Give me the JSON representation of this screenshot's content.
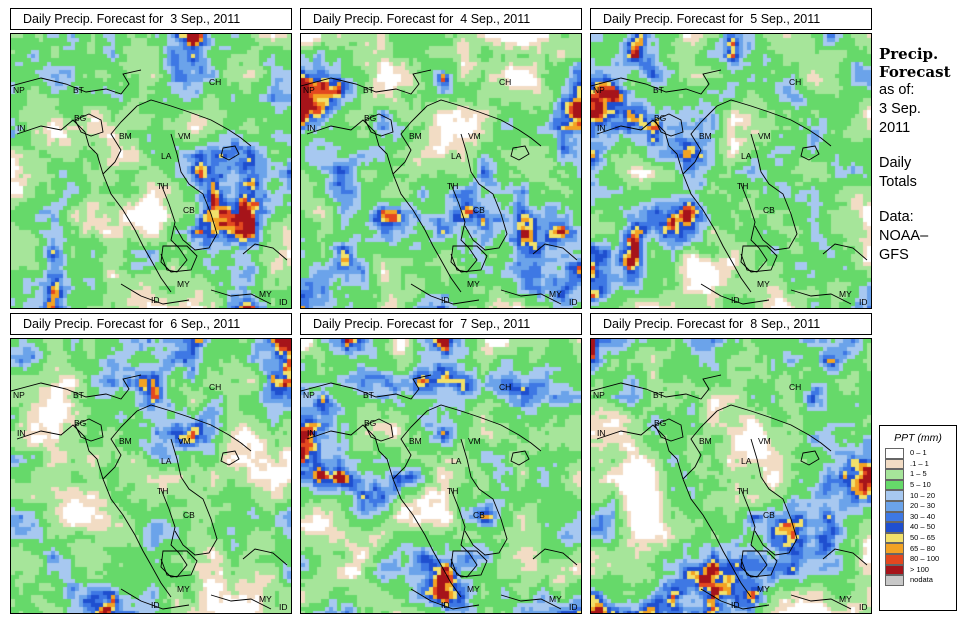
{
  "panels": [
    {
      "title": "Daily Precip. Forecast for  3 Sep., 2011",
      "seed": 11
    },
    {
      "title": "Daily Precip. Forecast for  4 Sep., 2011",
      "seed": 23
    },
    {
      "title": "Daily Precip. Forecast for  5 Sep., 2011",
      "seed": 37
    },
    {
      "title": "Daily Precip. Forecast for  6 Sep., 2011",
      "seed": 41
    },
    {
      "title": "Daily Precip. Forecast for  7 Sep., 2011",
      "seed": 53
    },
    {
      "title": "Daily Precip. Forecast for  8 Sep., 2011",
      "seed": 67
    }
  ],
  "country_labels": [
    "NP",
    "BT",
    "CH",
    "IN",
    "BG",
    "BM",
    "VM",
    "LA",
    "TH",
    "CB",
    "MY",
    "ID",
    "MY",
    "ID"
  ],
  "side_info": {
    "title_line1": "Precip.",
    "title_line2": "Forecast",
    "asof": "as of:",
    "date_line1": "3 Sep.",
    "date_line2": "2011",
    "daily": "Daily",
    "totals": "Totals",
    "data_label": "Data:",
    "source_line1": "NOAA–",
    "source_line2": "GFS"
  },
  "legend": {
    "title": "PPT (mm)",
    "items": [
      {
        "label": "0 – 1",
        "color": "#ffffff"
      },
      {
        "label": ".1 – 1",
        "color": "#f2dcc4"
      },
      {
        "label": "1 – 5",
        "color": "#a6e59a"
      },
      {
        "label": "5 – 10",
        "color": "#66d96a"
      },
      {
        "label": "10 – 20",
        "color": "#a7c8f0"
      },
      {
        "label": "20 – 30",
        "color": "#6ba3ea"
      },
      {
        "label": "30 – 40",
        "color": "#3e78e4"
      },
      {
        "label": "40 – 50",
        "color": "#1f4fcf"
      },
      {
        "label": "50 – 65",
        "color": "#f2e06a"
      },
      {
        "label": "65 – 80",
        "color": "#f2a224"
      },
      {
        "label": "80 – 100",
        "color": "#e3481f"
      },
      {
        "label": "> 100",
        "color": "#a6141a"
      },
      {
        "label": "nodata",
        "color": "#c8c8c8"
      }
    ]
  }
}
